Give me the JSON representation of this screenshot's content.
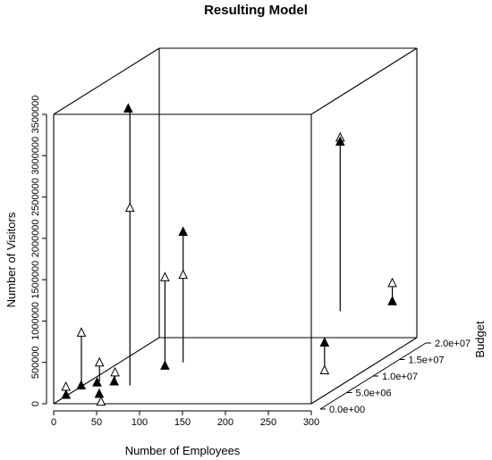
{
  "chart_data": {
    "type": "scatter3d",
    "title": "Resulting Model",
    "xlabel": "Number of Employees",
    "ylabel": "Number of Visitors",
    "zlabel": "Budget",
    "xlim": [
      0,
      300
    ],
    "ylim": [
      0,
      3500000
    ],
    "zlim": [
      0,
      20000000
    ],
    "x_ticks": [
      "0",
      "50",
      "100",
      "150",
      "200",
      "250",
      "300"
    ],
    "y_ticks": [
      "0",
      "500000",
      "1000000",
      "1500000",
      "2000000",
      "2500000",
      "3000000",
      "3500000"
    ],
    "z_ticks": [
      "0.0e+00",
      "5.0e+06",
      "1.0e+07",
      "1.5e+07",
      "2.0e+07"
    ],
    "legend": "none",
    "series": [
      {
        "marker": "open-triangle",
        "points": [
          {
            "x": 5,
            "y": 145000,
            "z": 1500000
          },
          {
            "x": 20,
            "y": 780000,
            "z": 2000000
          },
          {
            "x": 38,
            "y": 400000,
            "z": 2500000
          },
          {
            "x": 52,
            "y": 6000,
            "z": 500000
          },
          {
            "x": 53,
            "y": 260000,
            "z": 3000000
          },
          {
            "x": 55,
            "y": 2150000,
            "z": 5500000
          },
          {
            "x": 105,
            "y": 1370000,
            "z": 4000000
          },
          {
            "x": 120,
            "y": 1360000,
            "z": 5000000
          },
          {
            "x": 223,
            "y": 2500000,
            "z": 18000000
          },
          {
            "x": 297,
            "y": 285000,
            "z": 3000000
          },
          {
            "x": 296,
            "y": 820000,
            "z": 16000000
          }
        ]
      },
      {
        "marker": "filled-triangle",
        "points": [
          {
            "x": 7,
            "y": 60000,
            "z": 1200000
          },
          {
            "x": 21,
            "y": 150000,
            "z": 1800000
          },
          {
            "x": 37,
            "y": 170000,
            "z": 2200000
          },
          {
            "x": 50,
            "y": 100000,
            "z": 500000
          },
          {
            "x": 52,
            "y": 150000,
            "z": 3000000
          },
          {
            "x": 53,
            "y": 3350000,
            "z": 5500000
          },
          {
            "x": 105,
            "y": 300000,
            "z": 4000000
          },
          {
            "x": 120,
            "y": 1880000,
            "z": 5000000
          },
          {
            "x": 223,
            "y": 2450000,
            "z": 18000000
          },
          {
            "x": 297,
            "y": 620000,
            "z": 3000000
          },
          {
            "x": 296,
            "y": 600000,
            "z": 16000000
          }
        ]
      }
    ],
    "stems": [
      {
        "x": 20,
        "y_from": 780000,
        "y_to": 150000,
        "z": 2000000
      },
      {
        "x": 38,
        "y_from": 400000,
        "y_to": 170000,
        "z": 2500000
      },
      {
        "x": 53,
        "y_from": 260000,
        "y_to": 150000,
        "z": 3000000
      },
      {
        "x": 55,
        "y_from": 3350000,
        "y_to": 0,
        "z": 5500000
      },
      {
        "x": 105,
        "y_from": 1370000,
        "y_to": 300000,
        "z": 4000000
      },
      {
        "x": 120,
        "y_from": 1880000,
        "y_to": 300000,
        "z": 5000000
      },
      {
        "x": 223,
        "y_from": 2500000,
        "y_to": 400000,
        "z": 18000000
      },
      {
        "x": 297,
        "y_from": 620000,
        "y_to": 330000,
        "z": 3000000
      },
      {
        "x": 296,
        "y_from": 820000,
        "y_to": 600000,
        "z": 16000000
      }
    ]
  }
}
